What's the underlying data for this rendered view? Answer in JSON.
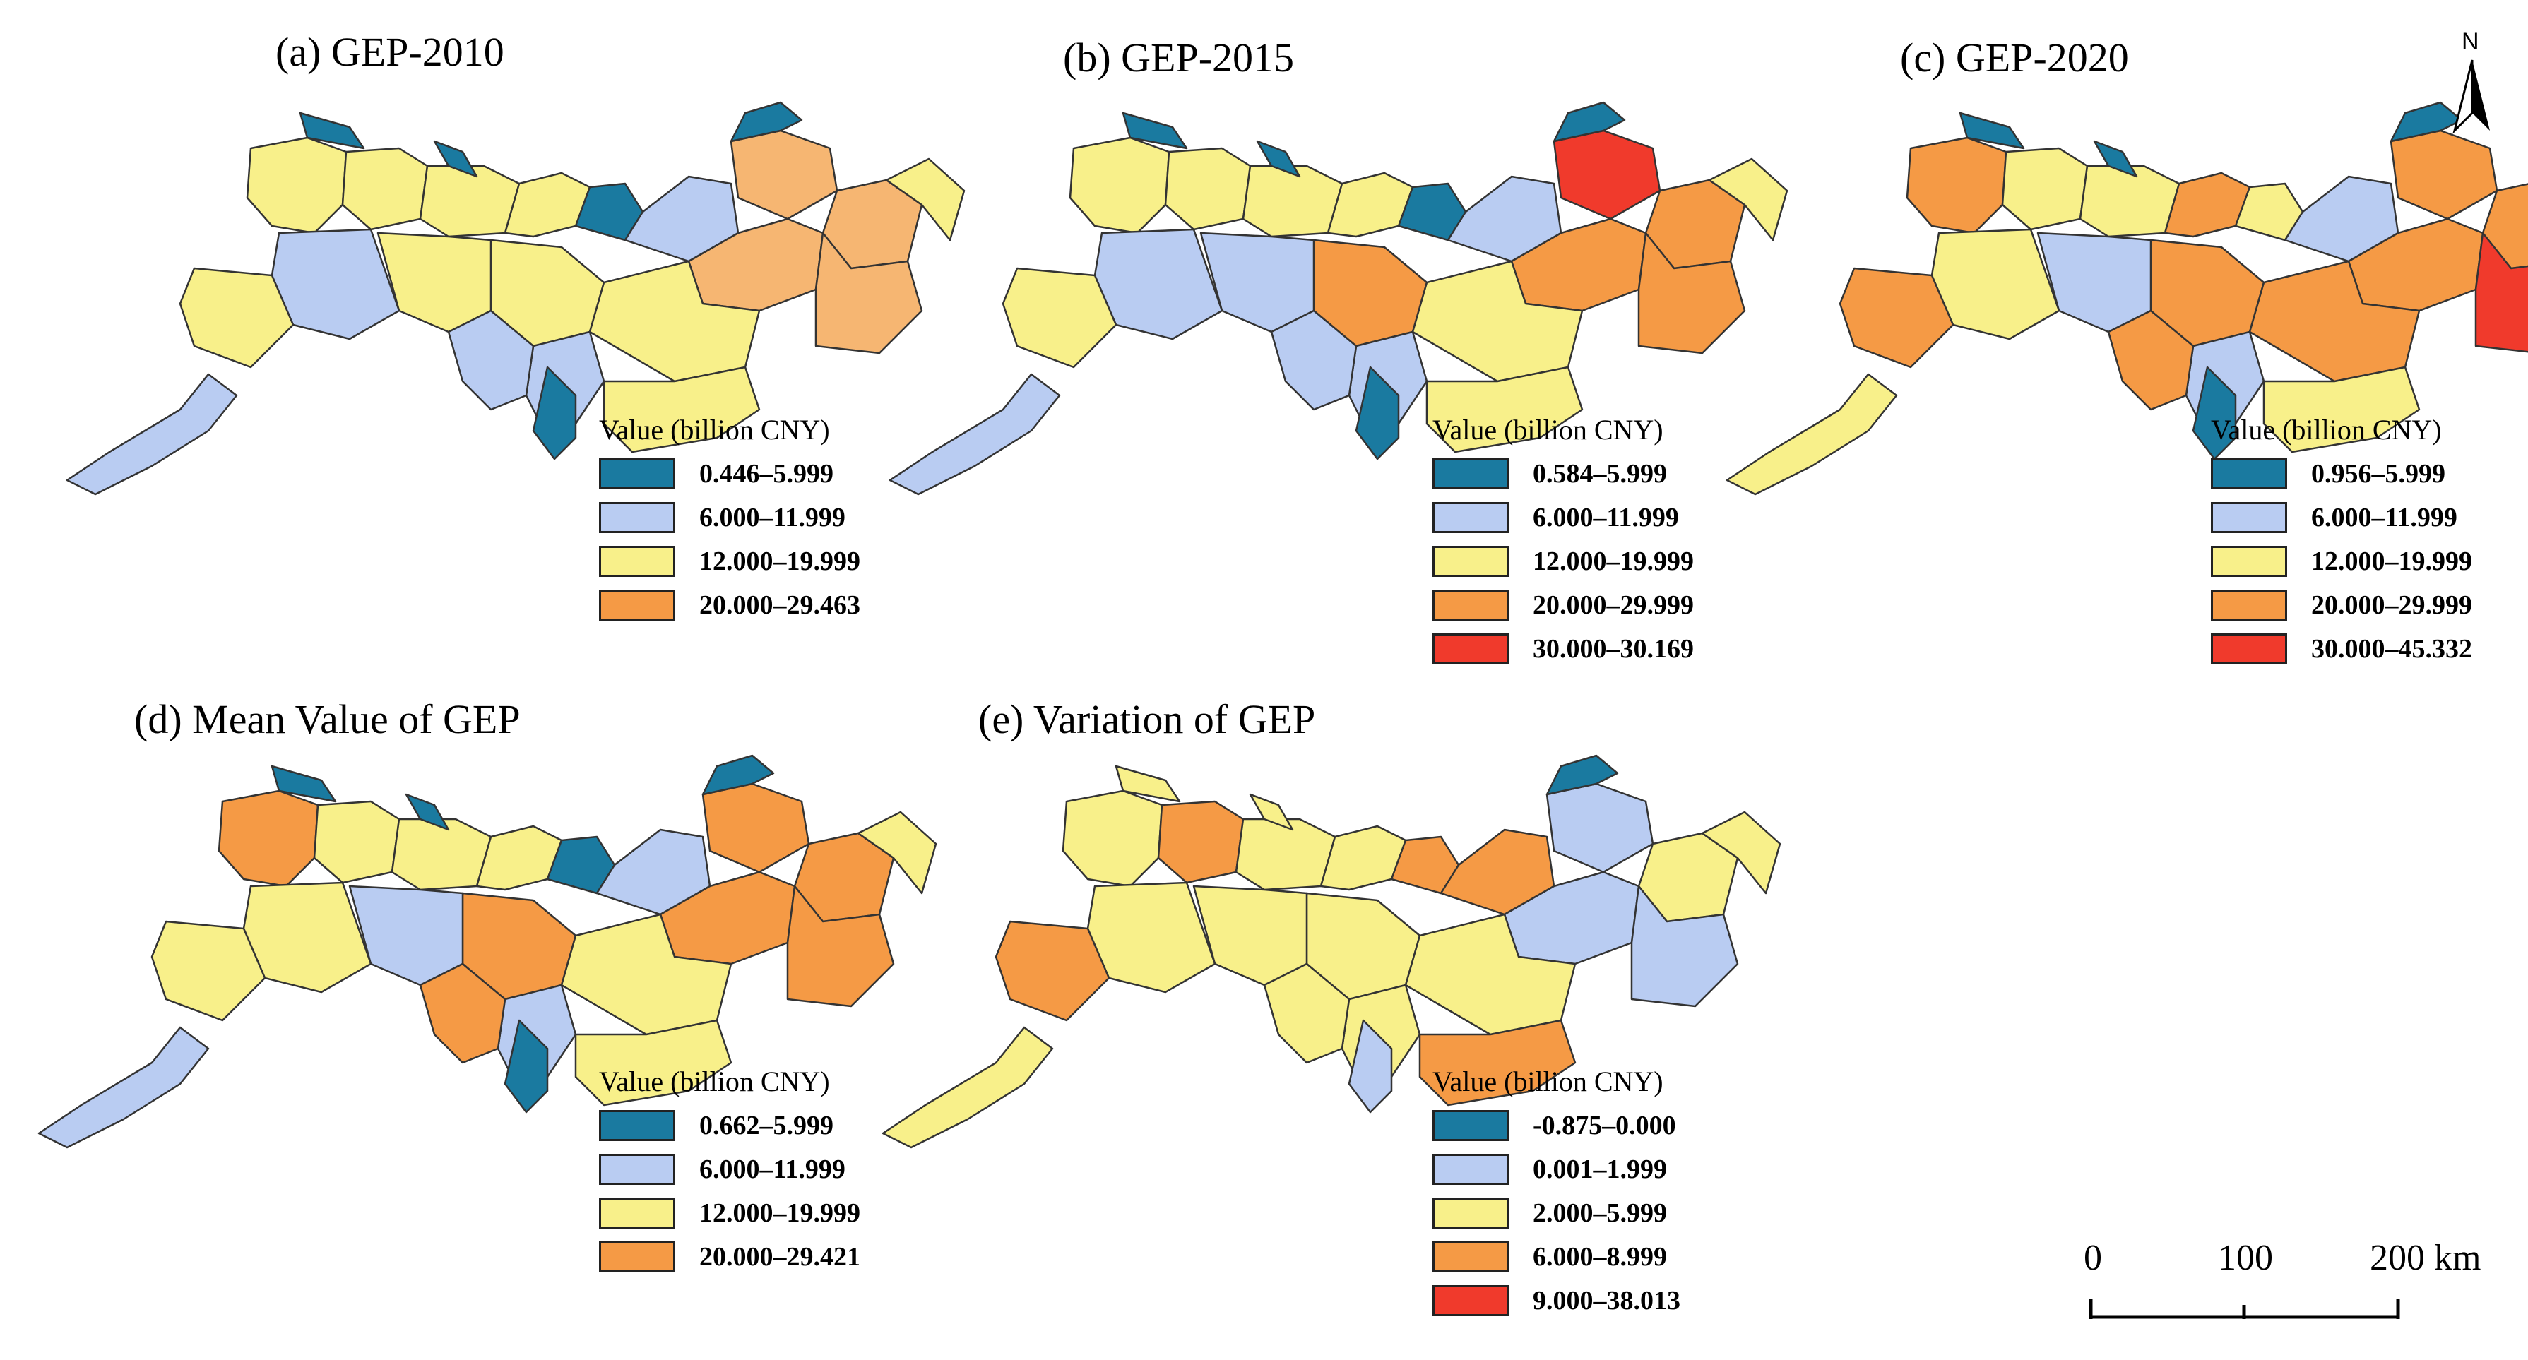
{
  "colors": {
    "dark_blue": "#1a7aa0",
    "light_blue": "#b9ccf2",
    "yellow": "#f8f08a",
    "light_orange": "#f6b672",
    "orange": "#f59a45",
    "red": "#f03a2c",
    "outline": "#333333"
  },
  "panels": [
    {
      "title": "(a) GEP-2010",
      "legend_title": "Value (billion CNY)",
      "classes": [
        {
          "label": "0.446–5.999",
          "color": "#1a7aa0"
        },
        {
          "label": "6.000–11.999",
          "color": "#b9ccf2"
        },
        {
          "label": "12.000–19.999",
          "color": "#f8f08a"
        },
        {
          "label": "20.000–29.463",
          "color": "#f59a45"
        }
      ]
    },
    {
      "title": "(b) GEP-2015",
      "legend_title": "Value (billion CNY)",
      "classes": [
        {
          "label": "0.584–5.999",
          "color": "#1a7aa0"
        },
        {
          "label": "6.000–11.999",
          "color": "#b9ccf2"
        },
        {
          "label": "12.000–19.999",
          "color": "#f8f08a"
        },
        {
          "label": "20.000–29.999",
          "color": "#f59a45"
        },
        {
          "label": "30.000–30.169",
          "color": "#f03a2c"
        }
      ]
    },
    {
      "title": "(c) GEP-2020",
      "legend_title": "Value (billion CNY)",
      "classes": [
        {
          "label": "0.956–5.999",
          "color": "#1a7aa0"
        },
        {
          "label": "6.000–11.999",
          "color": "#b9ccf2"
        },
        {
          "label": "12.000–19.999",
          "color": "#f8f08a"
        },
        {
          "label": "20.000–29.999",
          "color": "#f59a45"
        },
        {
          "label": "30.000–45.332",
          "color": "#f03a2c"
        }
      ]
    },
    {
      "title": "(d) Mean Value of GEP",
      "legend_title": "Value (billion CNY)",
      "classes": [
        {
          "label": "0.662–5.999",
          "color": "#1a7aa0"
        },
        {
          "label": "6.000–11.999",
          "color": "#b9ccf2"
        },
        {
          "label": "12.000–19.999",
          "color": "#f8f08a"
        },
        {
          "label": "20.000–29.421",
          "color": "#f59a45"
        }
      ]
    },
    {
      "title": "(e) Variation of GEP",
      "legend_title": "Value (billion CNY)",
      "classes": [
        {
          "label": "-0.875–0.000",
          "color": "#1a7aa0"
        },
        {
          "label": "0.001–1.999",
          "color": "#b9ccf2"
        },
        {
          "label": "2.000–5.999",
          "color": "#f8f08a"
        },
        {
          "label": "6.000–8.999",
          "color": "#f59a45"
        },
        {
          "label": "9.000–38.013",
          "color": "#f03a2c"
        }
      ]
    }
  ],
  "north_arrow": {
    "letter": "N"
  },
  "scale_bar": {
    "labels": [
      "0",
      "100",
      "200 km"
    ]
  }
}
